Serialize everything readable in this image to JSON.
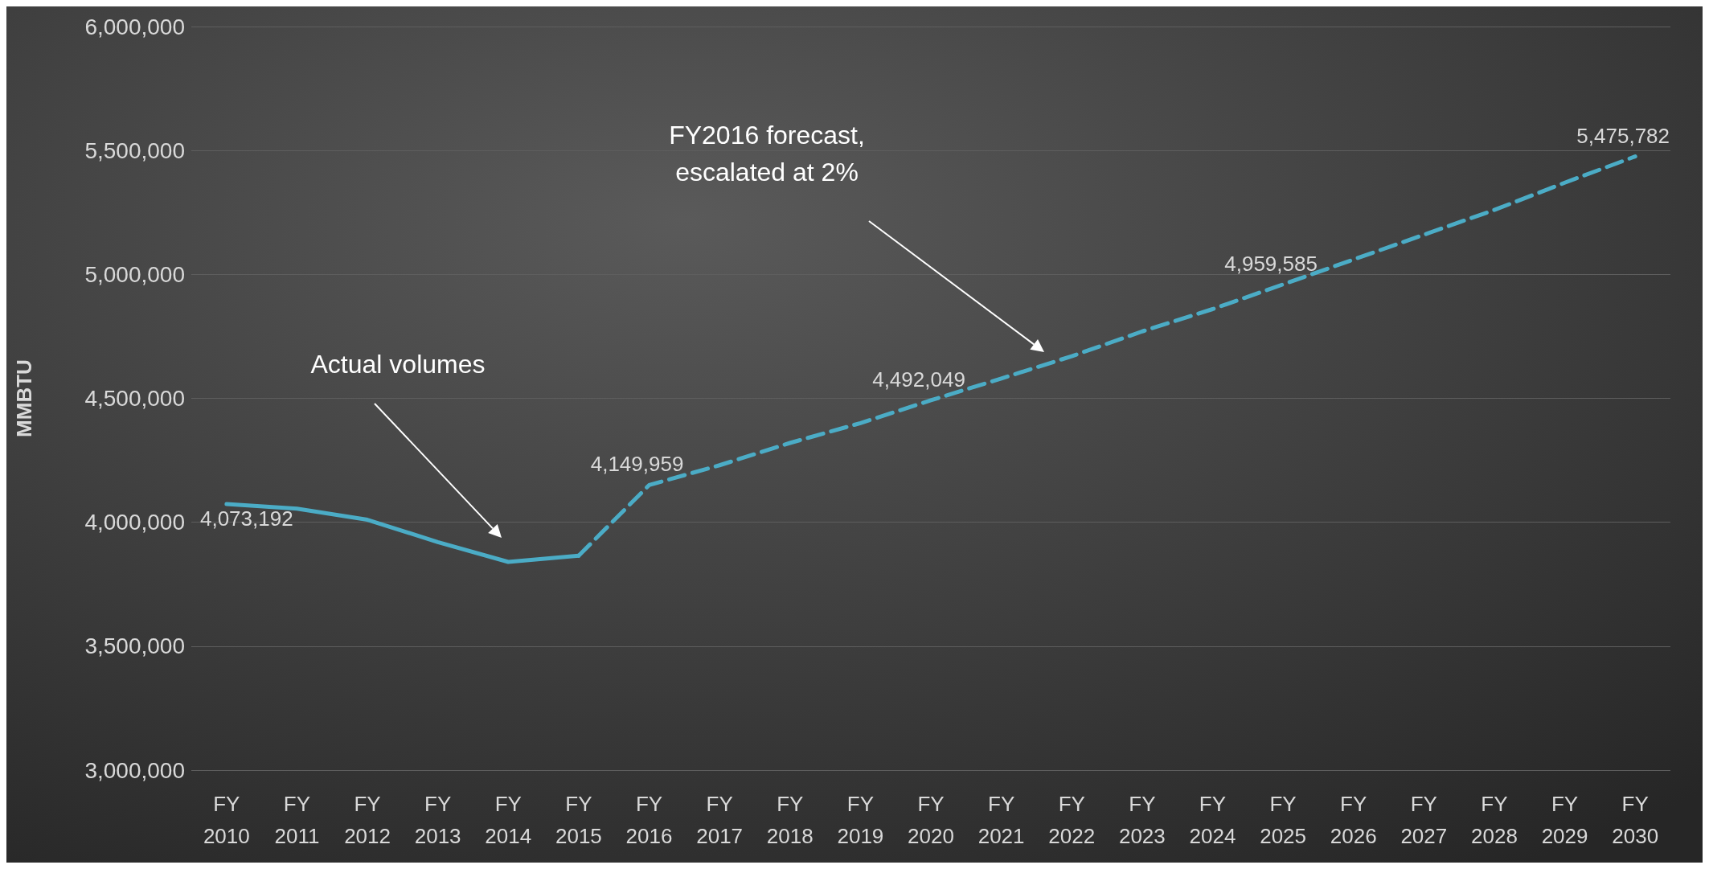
{
  "chart_data": {
    "type": "line",
    "ylabel": "MMBTU",
    "categories": [
      "FY 2010",
      "FY 2011",
      "FY 2012",
      "FY 2013",
      "FY 2014",
      "FY 2015",
      "FY 2016",
      "FY 2017",
      "FY 2018",
      "FY 2019",
      "FY 2020",
      "FY 2021",
      "FY 2022",
      "FY 2023",
      "FY 2024",
      "FY 2025",
      "FY 2026",
      "FY 2027",
      "FY 2028",
      "FY 2029",
      "FY 2030"
    ],
    "series": [
      {
        "color": "#4bacc6",
        "line_style": "solid",
        "values": [
          4073192,
          4055000,
          4010000,
          3920000,
          3840000,
          3865000,
          null,
          null,
          null,
          null,
          null,
          null,
          null,
          null,
          null,
          null,
          null,
          null,
          null,
          null,
          null
        ],
        "value_labels": [
          "4,073,192",
          null,
          null,
          null,
          null,
          null,
          null,
          null,
          null,
          null,
          null,
          null,
          null,
          null,
          null,
          null,
          null,
          null,
          null,
          null,
          null
        ]
      },
      {
        "color": "#4bacc6",
        "line_style": "dashed",
        "values": [
          null,
          null,
          null,
          null,
          null,
          3865000,
          4149959,
          4230000,
          4320000,
          4400000,
          4492049,
          4580000,
          4670000,
          4770000,
          4860000,
          4959585,
          5060000,
          5160000,
          5260000,
          5370000,
          5475782
        ],
        "value_labels": [
          null,
          null,
          null,
          null,
          null,
          null,
          "4,149,959",
          null,
          null,
          null,
          "4,492,049",
          null,
          null,
          null,
          null,
          "4,959,585",
          null,
          null,
          null,
          null,
          "5,475,782"
        ]
      }
    ],
    "ylim": [
      3000000,
      6000000
    ],
    "yticks": [
      {
        "value": 3000000,
        "label": "3,000,000"
      },
      {
        "value": 3500000,
        "label": "3,500,000"
      },
      {
        "value": 4000000,
        "label": "4,000,000"
      },
      {
        "value": 4500000,
        "label": "4,500,000"
      },
      {
        "value": 5000000,
        "label": "5,000,000"
      },
      {
        "value": 5500000,
        "label": "5,500,000"
      },
      {
        "value": 6000000,
        "label": "6,000,000"
      }
    ],
    "grid": "y",
    "marker": "none",
    "annotations": [
      "Actual volumes",
      "FY2016 forecast,\nescalated at 2%"
    ]
  }
}
